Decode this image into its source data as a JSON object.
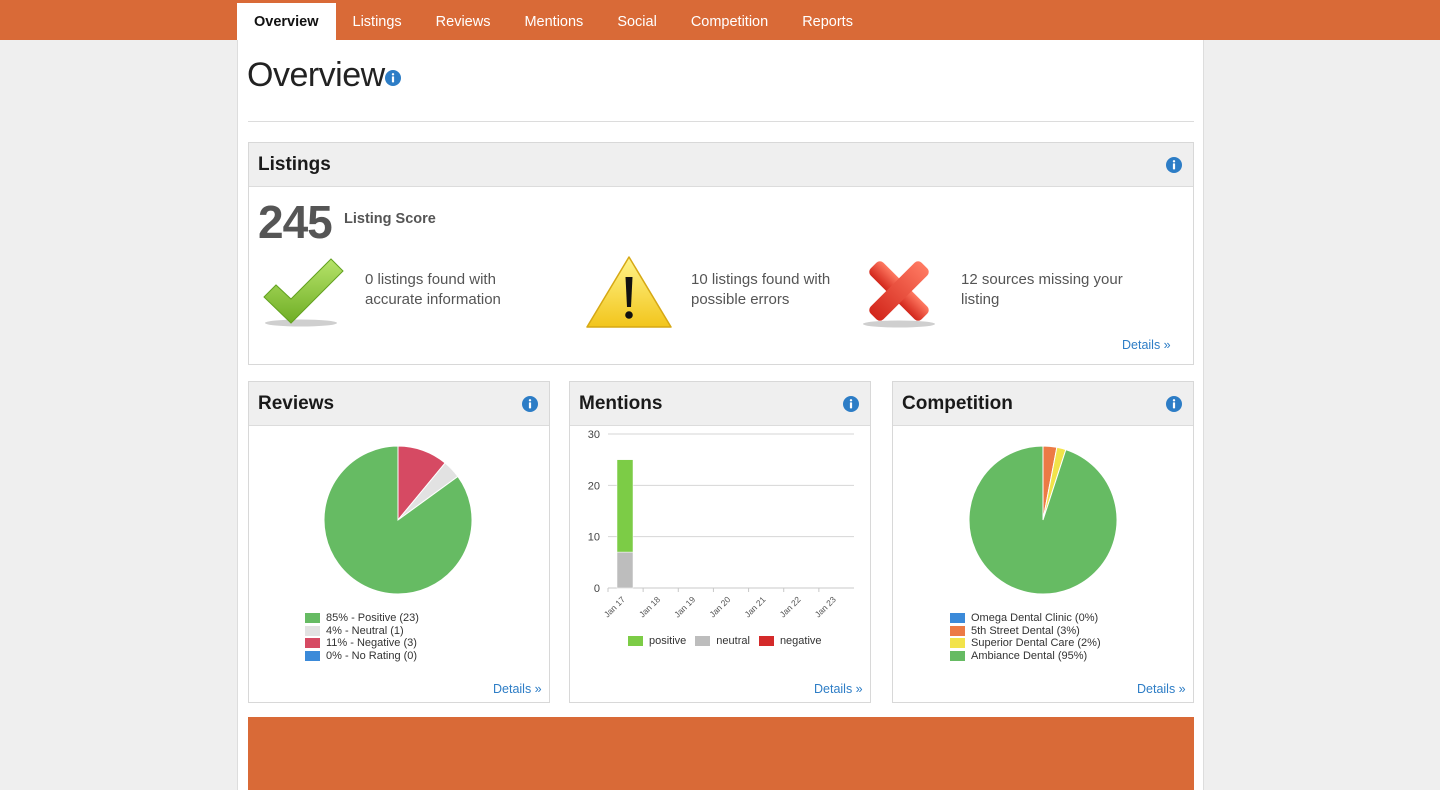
{
  "nav": {
    "tabs": [
      {
        "label": "Overview",
        "active": true
      },
      {
        "label": "Listings"
      },
      {
        "label": "Reviews"
      },
      {
        "label": "Mentions"
      },
      {
        "label": "Social"
      },
      {
        "label": "Competition"
      },
      {
        "label": "Reports"
      }
    ]
  },
  "page": {
    "title": "Overview"
  },
  "listings": {
    "title": "Listings",
    "score": "245",
    "score_label": "Listing Score",
    "accurate_text": "0 listings found with accurate information",
    "errors_text": "10 listings found with possible errors",
    "missing_text": "12 sources missing your listing",
    "details_label": "Details »"
  },
  "reviews": {
    "title": "Reviews",
    "details_label": "Details »",
    "legend": [
      "85% - Positive (23)",
      "4% - Neutral (1)",
      "11% - Negative (3)",
      "0% - No Rating (0)"
    ]
  },
  "mentions": {
    "title": "Mentions",
    "details_label": "Details »",
    "legend": [
      "positive",
      "neutral",
      "negative"
    ]
  },
  "competition": {
    "title": "Competition",
    "details_label": "Details »",
    "legend": [
      "Omega Dental Clinic (0%)",
      "5th Street Dental (3%)",
      "Superior Dental Care (2%)",
      "Ambiance Dental (95%)"
    ]
  },
  "colors": {
    "brand": "#d96a37",
    "link": "#2d7dc6",
    "positive": "#66bb63",
    "neutral": "#e2e2e2",
    "negative": "#d64a63",
    "no_rating": "#3b8ad9"
  },
  "chart_data": [
    {
      "type": "pie",
      "categories": [
        "Positive",
        "Neutral",
        "Negative",
        "No Rating"
      ],
      "values": [
        85,
        4,
        11,
        0
      ],
      "counts": [
        23,
        1,
        3,
        0
      ],
      "colors": [
        "#66bb63",
        "#e2e2e2",
        "#d64a63",
        "#3b8ad9"
      ]
    },
    {
      "type": "bar",
      "stacked": true,
      "categories": [
        "Jan 17",
        "Jan 18",
        "Jan 19",
        "Jan 20",
        "Jan 21",
        "Jan 22",
        "Jan 23"
      ],
      "series": [
        {
          "name": "positive",
          "color": "#7ccc46",
          "values": [
            18,
            0,
            0,
            0,
            0,
            0,
            0
          ]
        },
        {
          "name": "neutral",
          "color": "#bdbdbd",
          "values": [
            7,
            0,
            0,
            0,
            0,
            0,
            0
          ]
        },
        {
          "name": "negative",
          "color": "#d42a2a",
          "values": [
            0,
            0,
            0,
            0,
            0,
            0,
            0
          ]
        }
      ],
      "yticks": [
        0,
        10,
        20,
        30
      ],
      "ylim": [
        0,
        30
      ],
      "grid": true
    },
    {
      "type": "pie",
      "categories": [
        "Omega Dental Clinic",
        "5th Street Dental",
        "Superior Dental Care",
        "Ambiance Dental"
      ],
      "values": [
        0,
        3,
        2,
        95
      ],
      "colors": [
        "#3b8ad9",
        "#ec7a45",
        "#f2e34a",
        "#66bb63"
      ]
    }
  ]
}
